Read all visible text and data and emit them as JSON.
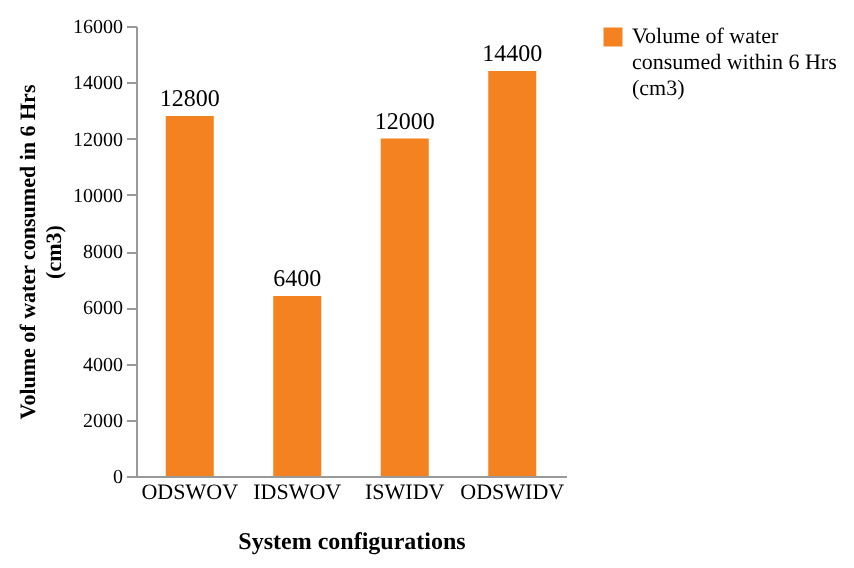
{
  "chart_data": {
    "type": "bar",
    "xlabel": "System configurations",
    "ylabel": "Volume of water consumed in 6 Hrs (cm3)",
    "categories": [
      "ODSWOV",
      "IDSWOV",
      "ISWIDV",
      "ODSWIDV"
    ],
    "series": [
      {
        "name": "Volume of water consumed within 6 Hrs (cm3)",
        "color": "#f58220",
        "values": [
          12800,
          6400,
          12000,
          14400
        ]
      }
    ],
    "ylim": [
      0,
      16000
    ],
    "yticks": [
      0,
      2000,
      4000,
      6000,
      8000,
      10000,
      12000,
      14000,
      16000
    ],
    "data_labels": true,
    "grid": false,
    "legend": "right"
  }
}
